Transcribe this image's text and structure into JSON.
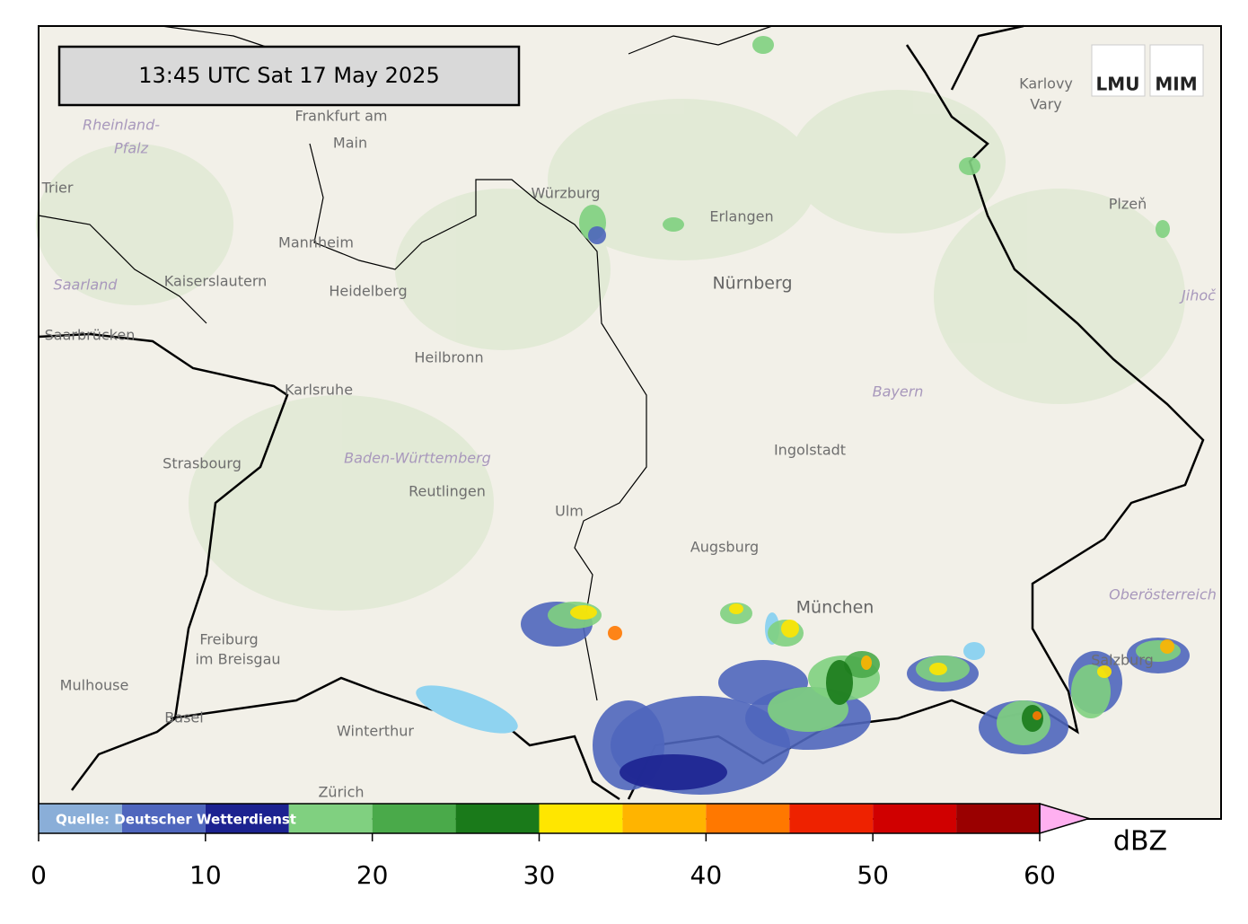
{
  "timestamp": "13:45 UTC  Sat 17 May 2025",
  "logos": [
    "LMU",
    "MIM"
  ],
  "places": [
    {
      "label": "Frankfurt am",
      "style": "city"
    },
    {
      "label": "Main",
      "style": "city"
    },
    {
      "label": "Rheinland-",
      "style": "region"
    },
    {
      "label": "Pfalz",
      "style": "region"
    },
    {
      "label": "Trier",
      "style": "city"
    },
    {
      "label": "Würzburg",
      "style": "city"
    },
    {
      "label": "Erlangen",
      "style": "city"
    },
    {
      "label": "Nürnberg",
      "style": "bigcity"
    },
    {
      "label": "Mannheim",
      "style": "city"
    },
    {
      "label": "Kaiserslautern",
      "style": "city"
    },
    {
      "label": "Heidelberg",
      "style": "city"
    },
    {
      "label": "Saarland",
      "style": "region"
    },
    {
      "label": "Saarbrücken",
      "style": "city"
    },
    {
      "label": "Heilbronn",
      "style": "city"
    },
    {
      "label": "Karlsruhe",
      "style": "city"
    },
    {
      "label": "Strasbourg",
      "style": "city"
    },
    {
      "label": "Baden-Württemberg",
      "style": "region"
    },
    {
      "label": "Reutlingen",
      "style": "city"
    },
    {
      "label": "Ulm",
      "style": "city"
    },
    {
      "label": "Augsburg",
      "style": "city"
    },
    {
      "label": "Ingolstadt",
      "style": "city"
    },
    {
      "label": "Bayern",
      "style": "region"
    },
    {
      "label": "München",
      "style": "bigcity"
    },
    {
      "label": "Freiburg",
      "style": "city"
    },
    {
      "label": "im Breisgau",
      "style": "city"
    },
    {
      "label": "Mulhouse",
      "style": "city"
    },
    {
      "label": "Basel",
      "style": "city"
    },
    {
      "label": "Winterthur",
      "style": "city"
    },
    {
      "label": "Zürich",
      "style": "city"
    },
    {
      "label": "Salzburg",
      "style": "city"
    },
    {
      "label": "Oberösterreich",
      "style": "region"
    },
    {
      "label": "Karlovy",
      "style": "city"
    },
    {
      "label": "Vary",
      "style": "city"
    },
    {
      "label": "Plzeň",
      "style": "city"
    },
    {
      "label": "Jihoč",
      "style": "region"
    }
  ],
  "colorbar": {
    "source": "Quelle: Deutscher Wetterdienst",
    "unit": "dBZ",
    "bounds": [
      0,
      5,
      10,
      15,
      20,
      25,
      30,
      35,
      40,
      45,
      50,
      55,
      60
    ],
    "colors": [
      "#8aaed8",
      "#4f66bd",
      "#1c2290",
      "#80d080",
      "#4aaa4a",
      "#1a7a1a",
      "#ffe600",
      "#ffb400",
      "#ff7800",
      "#ee2200",
      "#d00000",
      "#9a0000"
    ],
    "extend_color": "#ffb0f0",
    "ticks": [
      0,
      10,
      20,
      30,
      40,
      50,
      60
    ]
  }
}
